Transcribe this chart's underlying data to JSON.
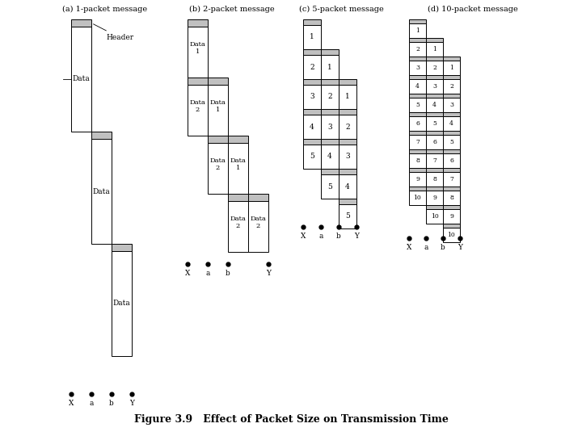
{
  "title": "Figure 3.9   Effect of Packet Size on Transmission Time",
  "subtitle_a": "(a) 1-packet message",
  "subtitle_b": "(b) 2-packet message",
  "subtitle_c": "(c) 5-packet message",
  "subtitle_d": "(d) 10-packet message",
  "gray_color": "#c0c0c0",
  "white_color": "#ffffff",
  "black_color": "#000000",
  "bg_color": "#ffffff",
  "fig_width": 7.2,
  "fig_height": 5.4,
  "fig_dpi": 100
}
